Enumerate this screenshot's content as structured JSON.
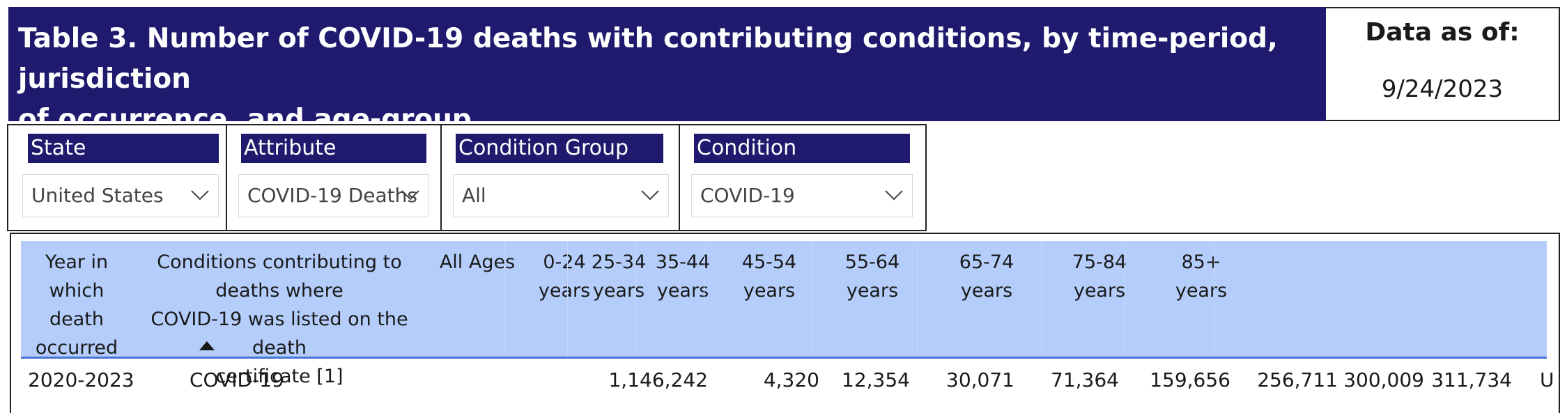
{
  "title": {
    "line1": "Table 3. Number of COVID-19 deaths with contributing conditions, by time-period, jurisdiction",
    "line2": "of occurrence, and age-group."
  },
  "data_as_of": {
    "label": "Data as of:",
    "value": "9/24/2023"
  },
  "filters": [
    {
      "label": "State",
      "value": "United States"
    },
    {
      "label": "Attribute",
      "value": "COVID-19 Deaths"
    },
    {
      "label": "Condition Group",
      "value": "All"
    },
    {
      "label": "Condition",
      "value": "COVID-19"
    }
  ],
  "table": {
    "columns": [
      {
        "l1": "Year in which",
        "l2": "death occurred",
        "l3": ""
      },
      {
        "l1": "Conditions contributing to deaths where",
        "l2": "COVID-19 was listed on the death",
        "l3": "certificate [1]"
      },
      {
        "l1": "All Ages",
        "l2": "",
        "l3": ""
      },
      {
        "l1": "0-24",
        "l2": "years",
        "l3": ""
      },
      {
        "l1": "25-34",
        "l2": "years",
        "l3": ""
      },
      {
        "l1": "35-44",
        "l2": "years",
        "l3": ""
      },
      {
        "l1": "45-54",
        "l2": "years",
        "l3": ""
      },
      {
        "l1": "55-64",
        "l2": "years",
        "l3": ""
      },
      {
        "l1": "65-74",
        "l2": "years",
        "l3": ""
      },
      {
        "l1": "75-84",
        "l2": "years",
        "l3": ""
      },
      {
        "l1": "85+",
        "l2": "years",
        "l3": ""
      }
    ],
    "rows": [
      {
        "year": "2020-2023",
        "condition": "COVID-19",
        "values": [
          "1,146,242",
          "4,320",
          "12,354",
          "30,071",
          "71,364",
          "159,656",
          "256,711",
          "300,009",
          "311,734"
        ],
        "trailing": "U"
      }
    ]
  },
  "colors": {
    "banner": "#1f1a6e",
    "header_fill": "#b4cdfb",
    "header_rule": "#4a72d6"
  },
  "icons": {
    "dropdown": "chevron-down-icon",
    "sort": "sort-ascending-icon"
  }
}
